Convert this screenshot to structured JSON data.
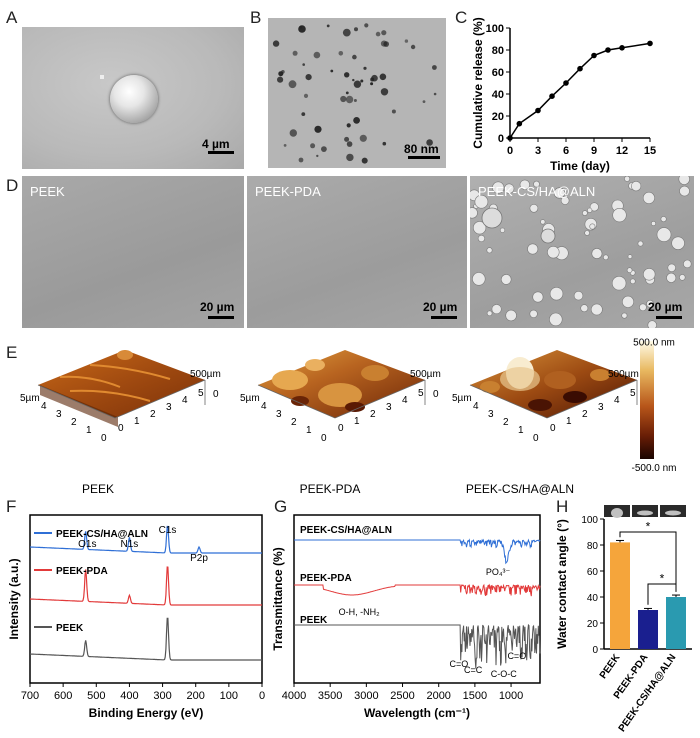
{
  "panels": {
    "A": {
      "label": "A",
      "scale": "4 µm"
    },
    "B": {
      "label": "B",
      "scale": "80 nm"
    },
    "C": {
      "label": "C"
    },
    "D": {
      "label": "D",
      "images": [
        {
          "title": "PEEK",
          "scale": "20 µm"
        },
        {
          "title": "PEEK-PDA",
          "scale": "20 µm"
        },
        {
          "title": "PEEK-CS/HA@ALN",
          "scale": "20 µm"
        }
      ]
    },
    "E": {
      "label": "E",
      "afm": [
        {
          "title": "PEEK"
        },
        {
          "title": "PEEK-PDA"
        },
        {
          "title": "PEEK-CS/HA@ALN"
        }
      ],
      "z_label": "500µm",
      "z_tick": "0",
      "x_ticks": [
        "5µm",
        "4",
        "3",
        "2",
        "1",
        "0"
      ],
      "y_ticks": [
        "0",
        "1",
        "2",
        "3",
        "4",
        "5"
      ],
      "colorbar": {
        "max": "500.0 nm",
        "min": "-500.0 nm"
      }
    },
    "F": {
      "label": "F"
    },
    "G": {
      "label": "G"
    },
    "H": {
      "label": "H"
    }
  },
  "chart_data": [
    {
      "id": "C",
      "type": "line",
      "xlabel": "Time (day)",
      "ylabel": "Cumulative release (%)",
      "xlim": [
        0,
        15
      ],
      "ylim": [
        0,
        100
      ],
      "xticks": [
        0,
        3,
        6,
        9,
        12,
        15
      ],
      "yticks": [
        0,
        20,
        40,
        60,
        80,
        100
      ],
      "x": [
        0,
        1,
        3,
        4.5,
        6,
        7.5,
        9,
        10.5,
        12,
        15
      ],
      "values": [
        0,
        13,
        25,
        38,
        50,
        63,
        75,
        80,
        82,
        86
      ]
    },
    {
      "id": "F",
      "type": "line",
      "xlabel": "Binding Energy (eV)",
      "ylabel": "Intensity (a.u.)",
      "xlim": [
        700,
        0
      ],
      "xticks": [
        700,
        600,
        500,
        400,
        300,
        200,
        100,
        0
      ],
      "series": [
        {
          "name": "PEEK-CS/HA@ALN",
          "color": "#2f6fd6"
        },
        {
          "name": "PEEK-PDA",
          "color": "#e23a3a"
        },
        {
          "name": "PEEK",
          "color": "#555555"
        }
      ],
      "annotations": [
        "O1s",
        "N1s",
        "C1s",
        "P2p"
      ]
    },
    {
      "id": "G",
      "type": "line",
      "xlabel": "Wavelength (cm⁻¹)",
      "ylabel": "Transmittance (%)",
      "xlim": [
        4000,
        600
      ],
      "xticks": [
        4000,
        3500,
        3000,
        2500,
        2000,
        1500,
        1000
      ],
      "series": [
        {
          "name": "PEEK-CS/HA@ALN",
          "color": "#2f6fd6"
        },
        {
          "name": "PEEK-PDA",
          "color": "#e23a3a"
        },
        {
          "name": "PEEK",
          "color": "#555555"
        }
      ],
      "annotations": [
        "PO₄³⁻",
        "O-H, -NH₂",
        "C=O",
        "C=C",
        "C-O-C",
        "C=O"
      ]
    },
    {
      "id": "H",
      "type": "bar",
      "ylabel": "Water contact angle (°)",
      "categories": [
        "PEEK",
        "PEEK-PDA",
        "PEEK-CS/HA@ALN"
      ],
      "values": [
        82,
        30,
        40
      ],
      "errors": [
        1.5,
        1.2,
        1.5
      ],
      "colors": [
        "#f5a53b",
        "#1a1f8f",
        "#2a9ab0"
      ],
      "ylim": [
        0,
        100
      ],
      "yticks": [
        0,
        20,
        40,
        60,
        80,
        100
      ],
      "significance": [
        "*",
        "*"
      ]
    }
  ]
}
